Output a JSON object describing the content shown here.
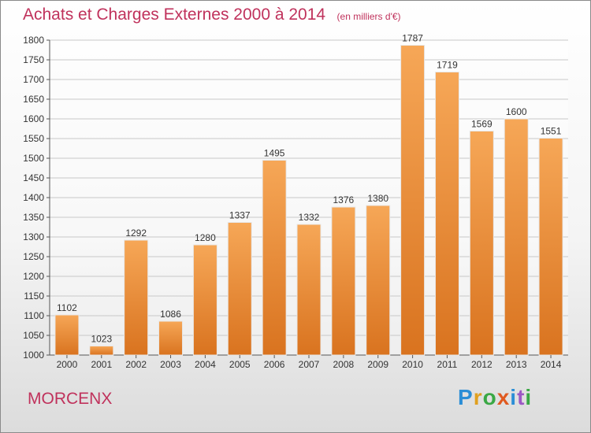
{
  "title": "Achats et Charges Externes 2000 à 2014",
  "unit": "(en milliers d'€)",
  "commune": "MORCENX",
  "logo": "Proxiti",
  "colors": {
    "title": "#c0325c",
    "bar_light": "#f6a757",
    "bar_dark": "#d9731f",
    "grid": "#c8c8c8",
    "logo_letters": [
      "#2b8ed6",
      "#e0a020",
      "#3aa845",
      "#e05a20",
      "#2b8ed6",
      "#9c58c4",
      "#3aa845"
    ]
  },
  "chart_data": {
    "type": "bar",
    "title": "Achats et Charges Externes 2000 à 2014",
    "subtitle": "(en milliers d'€)",
    "categories": [
      "2000",
      "2001",
      "2002",
      "2003",
      "2004",
      "2005",
      "2006",
      "2007",
      "2008",
      "2009",
      "2010",
      "2011",
      "2012",
      "2013",
      "2014"
    ],
    "values": [
      1102,
      1023,
      1292,
      1086,
      1280,
      1337,
      1495,
      1332,
      1376,
      1380,
      1787,
      1719,
      1569,
      1600,
      1551
    ],
    "ylim": [
      1000,
      1800
    ],
    "yticks": [
      1000,
      1050,
      1100,
      1150,
      1200,
      1250,
      1300,
      1350,
      1400,
      1450,
      1500,
      1550,
      1600,
      1650,
      1700,
      1750,
      1800
    ],
    "grid": true,
    "xlabel": "",
    "ylabel": ""
  }
}
